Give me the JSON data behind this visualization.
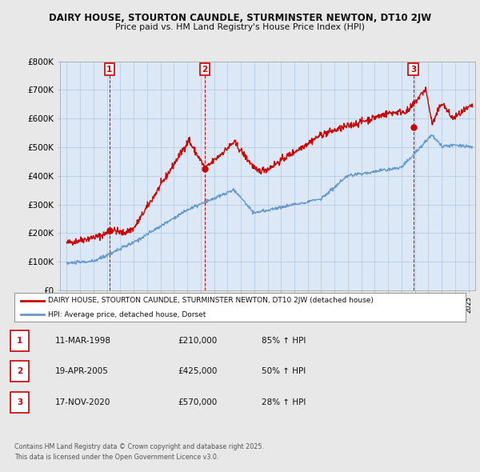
{
  "title_line1": "DAIRY HOUSE, STOURTON CAUNDLE, STURMINSTER NEWTON, DT10 2JW",
  "title_line2": "Price paid vs. HM Land Registry's House Price Index (HPI)",
  "ylim": [
    0,
    800000
  ],
  "yticks": [
    0,
    100000,
    200000,
    300000,
    400000,
    500000,
    600000,
    700000,
    800000
  ],
  "ytick_labels": [
    "£0",
    "£100K",
    "£200K",
    "£300K",
    "£400K",
    "£500K",
    "£600K",
    "£700K",
    "£800K"
  ],
  "background_color": "#e8e8e8",
  "plot_bg_color": "#dce8f5",
  "grid_color": "#b0c8e0",
  "red_color": "#cc0000",
  "blue_color": "#6699cc",
  "sale_dates": [
    1998.19,
    2005.3,
    2020.88
  ],
  "sale_prices": [
    210000,
    425000,
    570000
  ],
  "sale_labels": [
    "1",
    "2",
    "3"
  ],
  "legend_red_label": "DAIRY HOUSE, STOURTON CAUNDLE, STURMINSTER NEWTON, DT10 2JW (detached house)",
  "legend_blue_label": "HPI: Average price, detached house, Dorset",
  "table_data": [
    [
      "1",
      "11-MAR-1998",
      "£210,000",
      "85% ↑ HPI"
    ],
    [
      "2",
      "19-APR-2005",
      "£425,000",
      "50% ↑ HPI"
    ],
    [
      "3",
      "17-NOV-2020",
      "£570,000",
      "28% ↑ HPI"
    ]
  ],
  "footer_text": "Contains HM Land Registry data © Crown copyright and database right 2025.\nThis data is licensed under the Open Government Licence v3.0.",
  "xlim_start": 1994.5,
  "xlim_end": 2025.5
}
